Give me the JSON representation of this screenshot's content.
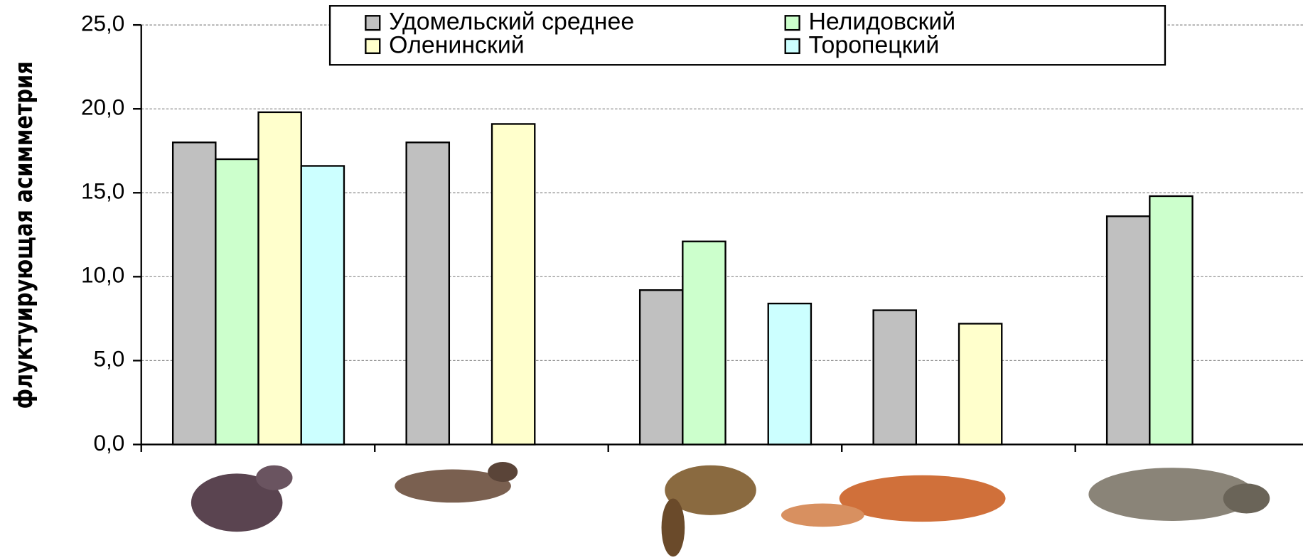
{
  "chart_data": {
    "type": "bar",
    "y_label": "флуктуирующая асимметрия",
    "categories": [
      null,
      null,
      null,
      null,
      null
    ],
    "series": [
      {
        "name": "Удомельский среднее",
        "color": "#c0c0c0",
        "values": [
          18.0,
          18.0,
          9.2,
          8.0,
          13.6
        ]
      },
      {
        "name": "Нелидовский",
        "color": "#ccffcc",
        "values": [
          17.0,
          null,
          12.1,
          null,
          14.8
        ]
      },
      {
        "name": "Оленинский",
        "color": "#ffffcc",
        "values": [
          19.8,
          19.1,
          null,
          7.2,
          null
        ]
      },
      {
        "name": "Торопецкий",
        "color": "#ccffff",
        "values": [
          16.6,
          null,
          8.4,
          null,
          null
        ]
      }
    ],
    "ylim": [
      0,
      25
    ],
    "yticks": [
      {
        "value": 0,
        "label": "0,0"
      },
      {
        "value": 5,
        "label": "5,0"
      },
      {
        "value": 10,
        "label": "10,0"
      },
      {
        "value": 15,
        "label": "15,0"
      },
      {
        "value": 20,
        "label": "20,0"
      },
      {
        "value": 25,
        "label": "25,0"
      }
    ],
    "grid": true,
    "legend": "top"
  }
}
